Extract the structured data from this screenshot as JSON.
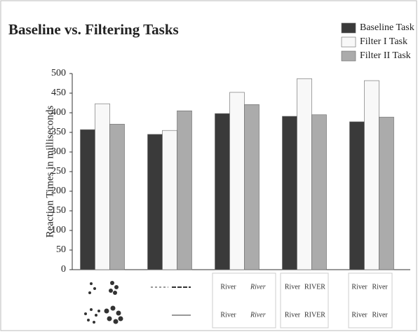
{
  "chart_data": {
    "type": "bar",
    "title": "Baseline vs. Filtering Tasks",
    "y_label": "Reaction Times in milliseconds",
    "categories": [
      null,
      null,
      null,
      null,
      null
    ],
    "series": [
      {
        "name": "Baseline Task",
        "color": "#3a3a3a",
        "values": [
          357,
          345,
          398,
          391,
          377
        ]
      },
      {
        "name": "Filter I Task",
        "color": "#f8f8f8",
        "values": [
          423,
          355,
          452,
          487,
          482
        ]
      },
      {
        "name": "Filter II Task",
        "color": "#ababab",
        "values": [
          371,
          405,
          421,
          395,
          389
        ]
      }
    ],
    "ylim": [
      0,
      500
    ],
    "yticks": [
      0,
      50,
      100,
      150,
      200,
      250,
      300,
      350,
      400,
      450,
      500
    ],
    "legend": "top-right",
    "stimuli": [
      null,
      null,
      [
        "River",
        "River",
        "River",
        "River"
      ],
      [
        "River",
        "RIVER",
        "River",
        "RIVER"
      ],
      [
        "River",
        "River",
        "River",
        "River"
      ]
    ]
  }
}
